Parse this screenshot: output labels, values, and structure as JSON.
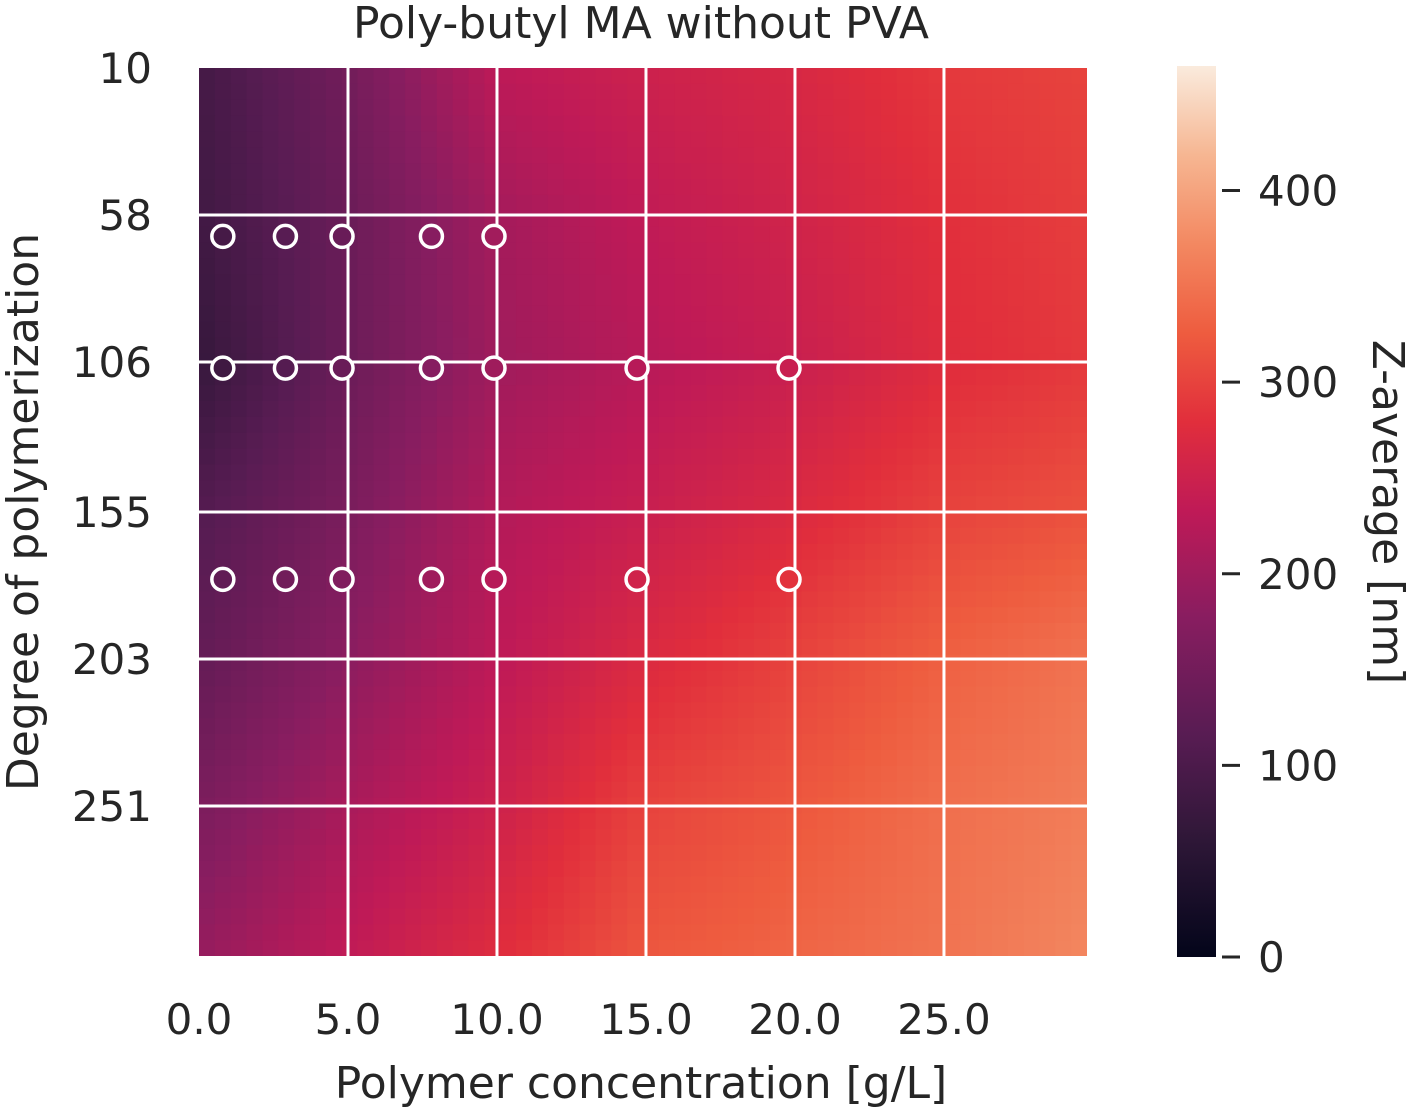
{
  "chart_data": {
    "type": "heatmap",
    "title": "Poly-butyl MA without PVA",
    "xlabel": "Polymer concentration [g/L]",
    "ylabel": "Degree of polymerization",
    "colorbar_label": "Z-average [nm]",
    "xlim": [
      0,
      29.8
    ],
    "ylim": [
      10,
      300
    ],
    "clim": [
      0,
      465
    ],
    "x_ticks": [
      0,
      5,
      10,
      15,
      20,
      25
    ],
    "x_tick_labels": [
      "0.0",
      "5.0",
      "10.0",
      "15.0",
      "20.0",
      "25.0"
    ],
    "y_ticks": [
      10,
      58,
      106,
      155,
      203,
      251
    ],
    "y_tick_labels": [
      "10",
      "58",
      "106",
      "155",
      "203",
      "251"
    ],
    "colorbar_ticks": [
      0,
      100,
      200,
      300,
      400
    ],
    "colorbar_tick_labels": [
      "0",
      "100",
      "200",
      "300",
      "400"
    ],
    "colormap": "rocket",
    "grid": true,
    "surface": {
      "x": [
        0,
        5,
        10,
        15,
        20,
        25,
        29.8
      ],
      "y": [
        10,
        58,
        106,
        155,
        203,
        251,
        300
      ],
      "z": [
        [
          90,
          150,
          230,
          250,
          265,
          290,
          300
        ],
        [
          85,
          140,
          205,
          235,
          255,
          280,
          295
        ],
        [
          70,
          140,
          200,
          225,
          245,
          275,
          290
        ],
        [
          110,
          160,
          220,
          245,
          270,
          300,
          315
        ],
        [
          130,
          180,
          230,
          270,
          300,
          330,
          350
        ],
        [
          160,
          210,
          250,
          300,
          320,
          345,
          360
        ],
        [
          190,
          235,
          275,
          320,
          335,
          350,
          370
        ]
      ]
    },
    "series": [
      {
        "name": "measured points",
        "points": [
          [
            0.8,
            65
          ],
          [
            2.9,
            65
          ],
          [
            4.8,
            65
          ],
          [
            7.8,
            65
          ],
          [
            9.9,
            65
          ],
          [
            0.8,
            108
          ],
          [
            2.9,
            108
          ],
          [
            4.8,
            108
          ],
          [
            7.8,
            108
          ],
          [
            9.9,
            108
          ],
          [
            14.7,
            108
          ],
          [
            19.8,
            108
          ],
          [
            0.8,
            177
          ],
          [
            2.9,
            177
          ],
          [
            4.8,
            177
          ],
          [
            7.8,
            177
          ],
          [
            9.9,
            177
          ],
          [
            14.7,
            177
          ],
          [
            19.8,
            177
          ]
        ]
      }
    ]
  }
}
